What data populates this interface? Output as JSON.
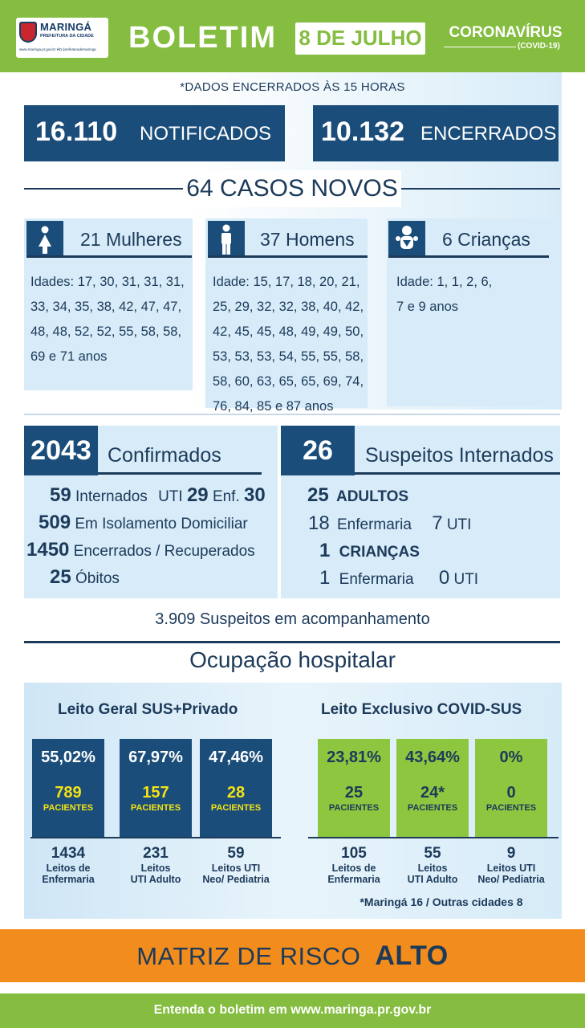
{
  "header": {
    "logo_name": "MARINGÁ",
    "logo_sub": "PREFEITURA DA CIDADE",
    "logo_url": "www.maringa.pr.gov.br  ▾f◘  /prefeiturademaringa",
    "title": "BOLETIM",
    "date": "8 DE JULHO",
    "corona": "CORONAVÍRUS",
    "covid": "(COVID-19)"
  },
  "note": "*DADOS ENCERRADOS ÀS 15 HORAS",
  "totals": {
    "notificados_num": "16.110",
    "notificados_label": "NOTIFICADOS",
    "encerrados_num": "10.132",
    "encerrados_label": "ENCERRADOS"
  },
  "casos_novos": "64 CASOS NOVOS",
  "groups": [
    {
      "icon": "woman-icon",
      "title": "21 Mulheres",
      "lines": [
        "Idades: 17, 30, 31, 31, 31,",
        "33, 34, 35, 38, 42, 47, 47,",
        "48, 48, 52, 52, 55, 58, 58,",
        "69 e 71 anos"
      ]
    },
    {
      "icon": "man-icon",
      "title": "37 Homens",
      "lines": [
        "Idade: 15, 17, 18, 20, 21,",
        "25, 29, 32, 32, 38, 40, 42,",
        "42, 45, 45, 48, 49, 49, 50,",
        "53, 53, 53, 54, 55, 55, 58,",
        "58, 60, 63, 65, 65, 69, 74,",
        "76, 84, 85 e 87 anos"
      ]
    },
    {
      "icon": "baby-icon",
      "title": "6 Crianças",
      "lines": [
        "Idade: 1, 1, 2, 6,",
        "7 e 9 anos"
      ]
    }
  ],
  "confirmados": {
    "num": "2043",
    "title": "Confirmados",
    "internados_num": "59",
    "internados_label": "Internados",
    "uti_label": "UTI",
    "uti_num": "29",
    "enf_label": "Enf.",
    "enf_num": "30",
    "isolamento_num": "509",
    "isolamento_label": "Em Isolamento Domiciliar",
    "recuperados_num": "1450",
    "recuperados_label": "Encerrados / Recuperados",
    "obitos_num": "25",
    "obitos_label": "Óbitos"
  },
  "suspeitos_internados": {
    "num": "26",
    "title": "Suspeitos Internados",
    "adultos_num": "25",
    "adultos_label": "ADULTOS",
    "adultos_enf_num": "18",
    "enf_label": "Enfermaria",
    "adultos_uti_num": "7",
    "uti_label": "UTI",
    "criancas_num": "1",
    "criancas_label": "CRIANÇAS",
    "criancas_enf_num": "1",
    "criancas_uti_num": "0"
  },
  "suspeitos_acompanhamento": "3.909 Suspeitos em acompanhamento",
  "ocupacao_title": "Ocupação hospitalar",
  "leito_geral": {
    "title": "Leito Geral SUS+Privado",
    "bars": [
      {
        "pct": "55,02%",
        "pacientes": "789",
        "pac_label": "PACIENTES",
        "leitos": "1434",
        "leitos_label": [
          "Leitos de",
          "Enfermaria"
        ]
      },
      {
        "pct": "67,97%",
        "pacientes": "157",
        "pac_label": "PACIENTES",
        "leitos": "231",
        "leitos_label": [
          "Leitos",
          "UTI Adulto"
        ]
      },
      {
        "pct": "47,46%",
        "pacientes": "28",
        "pac_label": "PACIENTES",
        "leitos": "59",
        "leitos_label": [
          "Leitos UTI",
          "Neo/ Pediatria"
        ]
      }
    ]
  },
  "leito_covid": {
    "title": "Leito Exclusivo COVID-SUS",
    "bars": [
      {
        "pct": "23,81%",
        "pacientes": "25",
        "pac_label": "PACIENTES",
        "leitos": "105",
        "leitos_label": [
          "Leitos de",
          "Enfermaria"
        ]
      },
      {
        "pct": "43,64%",
        "pacientes": "24*",
        "pac_label": "PACIENTES",
        "leitos": "55",
        "leitos_label": [
          "Leitos",
          "UTI Adulto"
        ]
      },
      {
        "pct": "0%",
        "pacientes": "0",
        "pac_label": "PACIENTES",
        "leitos": "9",
        "leitos_label": [
          "Leitos UTI",
          "Neo/ Pediatria"
        ]
      }
    ],
    "footnote": "*Maringá 16 / Outras cidades 8"
  },
  "risk": {
    "label": "MATRIZ DE RISCO",
    "level": "ALTO"
  },
  "footer": "Entenda o boletim em www.maringa.pr.gov.br",
  "colors": {
    "navy": "#1a4d7a",
    "green": "#84bd3f",
    "bar_green": "#8dc63f",
    "orange": "#f28c1c",
    "yellow": "#f5e214"
  }
}
